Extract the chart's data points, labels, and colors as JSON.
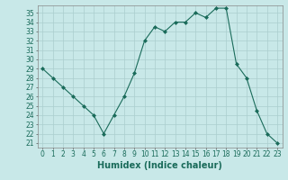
{
  "x": [
    0,
    1,
    2,
    3,
    4,
    5,
    6,
    7,
    8,
    9,
    10,
    11,
    12,
    13,
    14,
    15,
    16,
    17,
    18,
    19,
    20,
    21,
    22,
    23
  ],
  "y": [
    29,
    28,
    27,
    26,
    25,
    24,
    22,
    24,
    26,
    28.5,
    32,
    33.5,
    33,
    34,
    34,
    35,
    34.5,
    35.5,
    35.5,
    29.5,
    28,
    24.5,
    22,
    21
  ],
  "line_color": "#1a6b5a",
  "marker": "D",
  "marker_size": 2,
  "bg_color": "#c8e8e8",
  "grid_color": "#aacece",
  "xlabel": "Humidex (Indice chaleur)",
  "xlim": [
    -0.5,
    23.5
  ],
  "ylim": [
    20.5,
    35.8
  ],
  "yticks": [
    21,
    22,
    23,
    24,
    25,
    26,
    27,
    28,
    29,
    30,
    31,
    32,
    33,
    34,
    35
  ],
  "xticks": [
    0,
    1,
    2,
    3,
    4,
    5,
    6,
    7,
    8,
    9,
    10,
    11,
    12,
    13,
    14,
    15,
    16,
    17,
    18,
    19,
    20,
    21,
    22,
    23
  ],
  "tick_label_fontsize": 5.5,
  "xlabel_fontsize": 7
}
